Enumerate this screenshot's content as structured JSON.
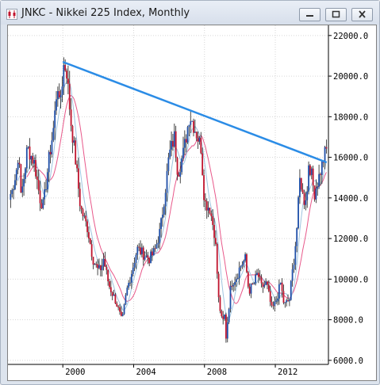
{
  "window": {
    "title": "JNKC - Nikkei 225 Index, Monthly",
    "controls": [
      "minimize",
      "maximize",
      "close"
    ]
  },
  "chart_data": {
    "type": "candlestick",
    "title": "JNKC - Nikkei 225 Index, Monthly",
    "price_axis": {
      "ticks": [
        6000,
        8000,
        10000,
        12000,
        14000,
        16000,
        18000,
        20000,
        22000
      ],
      "tick_labels": [
        "6000.0",
        "8000.0",
        "10000.0",
        "12000.0",
        "14000.0",
        "16000.0",
        "18000.0",
        "20000.0",
        "22000.0"
      ],
      "range": [
        5800,
        22500
      ],
      "position": "right"
    },
    "time_axis": {
      "ticks": [
        "2000",
        "2004",
        "2008",
        "2012"
      ],
      "range": [
        1996.9,
        2015.0
      ]
    },
    "grid": true,
    "colors": {
      "up_candle": "#1f4fa8",
      "down_candle": "#c0142e",
      "trendline": "#2b8ce6",
      "ma_fast": "#9ec4e0",
      "ma_slow": "#e8588a",
      "grid": "#d6d6d6"
    },
    "trendline": {
      "from": {
        "t": 2000.0,
        "price": 20700
      },
      "to": {
        "t": 2014.9,
        "price": 15750
      }
    },
    "price_path_anchors": [
      [
        1997.1,
        14200
      ],
      [
        1997.4,
        15500
      ],
      [
        1997.6,
        13800
      ],
      [
        1997.8,
        15000
      ],
      [
        1998.0,
        16500
      ],
      [
        1998.4,
        15700
      ],
      [
        1998.7,
        14000
      ],
      [
        1998.9,
        13600
      ],
      [
        1999.2,
        15800
      ],
      [
        1999.5,
        17600
      ],
      [
        1999.8,
        18500
      ],
      [
        2000.0,
        20000
      ],
      [
        2000.2,
        20400
      ],
      [
        2000.45,
        17800
      ],
      [
        2000.7,
        16000
      ],
      [
        2001.0,
        13500
      ],
      [
        2001.4,
        12500
      ],
      [
        2001.7,
        11000
      ],
      [
        2002.0,
        10400
      ],
      [
        2002.3,
        11000
      ],
      [
        2002.6,
        9700
      ],
      [
        2003.0,
        8900
      ],
      [
        2003.3,
        8000
      ],
      [
        2003.6,
        9400
      ],
      [
        2003.9,
        10400
      ],
      [
        2004.2,
        11500
      ],
      [
        2004.6,
        11200
      ],
      [
        2004.9,
        11000
      ],
      [
        2005.2,
        11400
      ],
      [
        2005.5,
        12400
      ],
      [
        2005.8,
        14500
      ],
      [
        2006.0,
        16100
      ],
      [
        2006.3,
        17000
      ],
      [
        2006.5,
        15200
      ],
      [
        2006.8,
        16200
      ],
      [
        2007.0,
        17200
      ],
      [
        2007.3,
        17800
      ],
      [
        2007.5,
        17300
      ],
      [
        2007.8,
        16500
      ],
      [
        2008.0,
        13800
      ],
      [
        2008.3,
        13500
      ],
      [
        2008.6,
        12100
      ],
      [
        2008.8,
        9000
      ],
      [
        2009.0,
        7800
      ],
      [
        2009.2,
        8400
      ],
      [
        2009.5,
        9800
      ],
      [
        2009.8,
        10100
      ],
      [
        2010.0,
        10600
      ],
      [
        2010.3,
        11000
      ],
      [
        2010.5,
        9400
      ],
      [
        2010.8,
        9800
      ],
      [
        2011.0,
        10300
      ],
      [
        2011.2,
        9600
      ],
      [
        2011.5,
        9800
      ],
      [
        2011.8,
        8500
      ],
      [
        2012.0,
        8800
      ],
      [
        2012.3,
        9800
      ],
      [
        2012.5,
        8700
      ],
      [
        2012.8,
        9000
      ],
      [
        2012.95,
        10300
      ],
      [
        2013.2,
        12300
      ],
      [
        2013.4,
        15100
      ],
      [
        2013.6,
        13800
      ],
      [
        2013.8,
        14300
      ],
      [
        2014.0,
        15400
      ],
      [
        2014.2,
        14200
      ],
      [
        2014.45,
        15000
      ],
      [
        2014.6,
        15500
      ],
      [
        2014.75,
        16000
      ]
    ],
    "price_path_points": [
      [
        1997.55,
        16000
      ],
      [
        1999.7,
        19800
      ],
      [
        2000.05,
        20500
      ],
      [
        2002.2,
        10600
      ],
      [
        2003.3,
        7600
      ],
      [
        2007.15,
        18100
      ],
      [
        2009.2,
        7000
      ],
      [
        2013.0,
        10500
      ],
      [
        2013.8,
        16000
      ],
      [
        2014.85,
        16350
      ]
    ]
  }
}
